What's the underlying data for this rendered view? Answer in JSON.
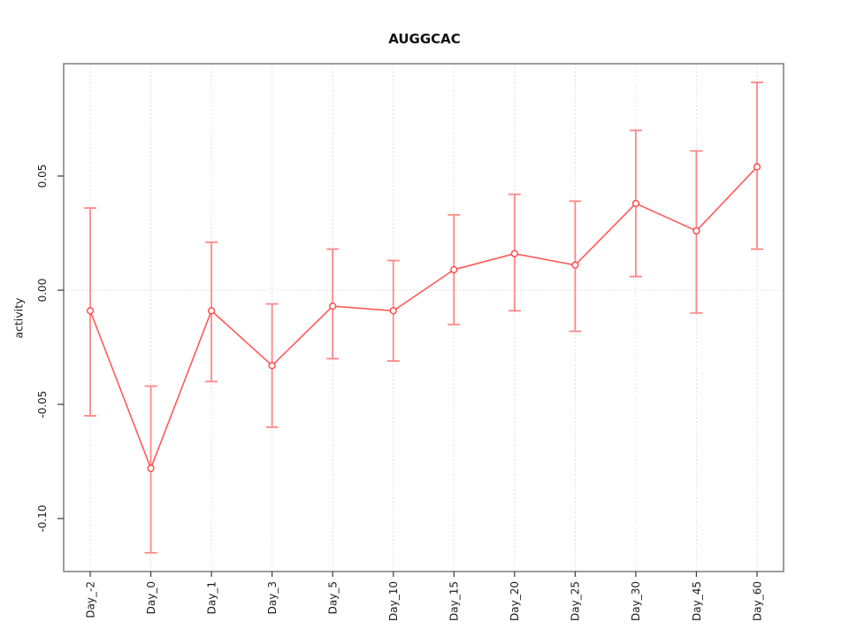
{
  "chart_data": {
    "type": "line",
    "title": "AUGGCAC",
    "xlabel": "",
    "ylabel": "activity",
    "error_bars": true,
    "grid": true,
    "legend": false,
    "categories": [
      "Day_-2",
      "Day_0",
      "Day_1",
      "Day_3",
      "Day_5",
      "Day_10",
      "Day_15",
      "Day_20",
      "Day_25",
      "Day_30",
      "Day_45",
      "Day_60"
    ],
    "series": [
      {
        "name": "activity",
        "values": [
          -0.009,
          -0.078,
          -0.009,
          -0.033,
          -0.007,
          -0.009,
          0.009,
          0.016,
          0.011,
          0.038,
          0.026,
          0.054
        ],
        "upper": [
          0.036,
          -0.042,
          0.021,
          -0.006,
          0.018,
          0.013,
          0.033,
          0.042,
          0.039,
          0.07,
          0.061,
          0.091
        ],
        "lower": [
          -0.055,
          -0.115,
          -0.04,
          -0.06,
          -0.03,
          -0.031,
          -0.015,
          -0.009,
          -0.018,
          0.006,
          -0.01,
          0.018
        ]
      }
    ],
    "yticks": [
      -0.1,
      -0.05,
      0.0,
      0.05
    ],
    "ytick_labels": [
      "-0.10",
      "-0.05",
      "0.00",
      "0.05"
    ],
    "ylim": [
      -0.1232,
      0.0992
    ],
    "zero_line": 0.0,
    "colors": {
      "series_line": "#ff5a5a",
      "point_stroke": "#ff4545",
      "point_fill": "#ffffff",
      "error_bar": "#ff8787",
      "grid": "#d8d8d8",
      "border": "#7d7d7d",
      "tick": "#3a3a3a",
      "text": "#1c1c1c",
      "background": "#ffffff"
    }
  }
}
